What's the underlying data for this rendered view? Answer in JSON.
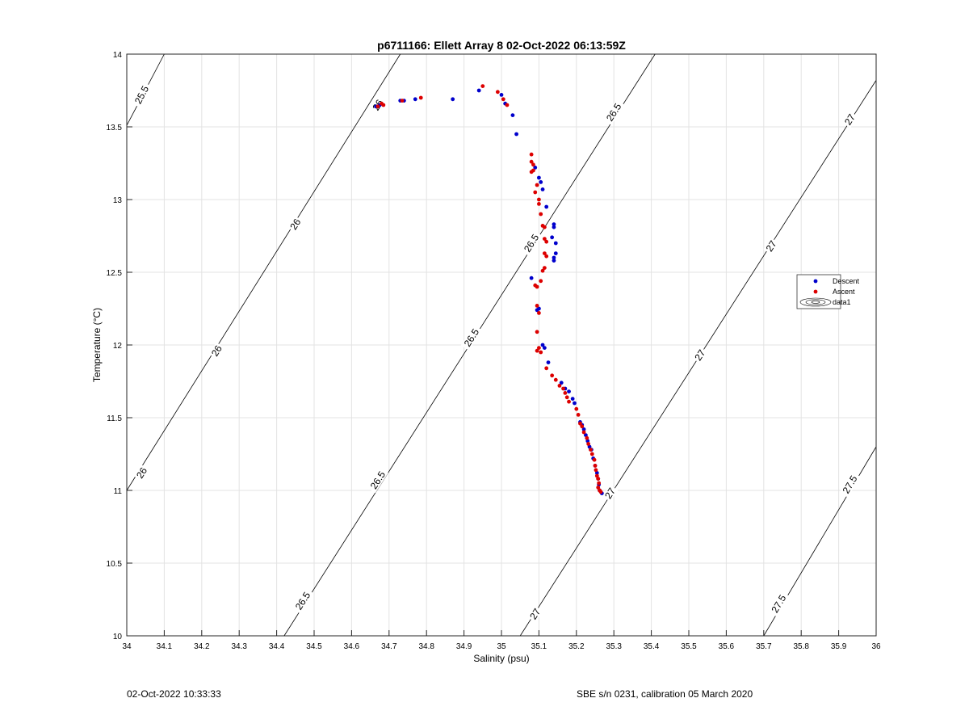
{
  "chart_data": {
    "type": "scatter",
    "title": "p6711166: Ellett Array 8 02-Oct-2022 06:13:59Z",
    "xlabel": "Salinity (psu)",
    "ylabel": "Temperature (°C)",
    "xlim": [
      34,
      36
    ],
    "ylim": [
      10,
      14
    ],
    "grid": true,
    "legend_placement": "right",
    "x_ticks": [
      "34",
      "34.1",
      "34.2",
      "34.3",
      "34.4",
      "34.5",
      "34.6",
      "34.7",
      "34.8",
      "34.9",
      "35",
      "35.1",
      "35.2",
      "35.3",
      "35.4",
      "35.5",
      "35.6",
      "35.7",
      "35.8",
      "35.9",
      "36"
    ],
    "y_ticks": [
      "10",
      "10.5",
      "11",
      "11.5",
      "12",
      "12.5",
      "13",
      "13.5",
      "14"
    ],
    "legend": [
      "Descent",
      "Ascent",
      "data1"
    ],
    "colors": {
      "descent": "#0000cc",
      "ascent": "#dd0000",
      "contour": "#000000",
      "grid": "#e3e3e3"
    },
    "series": [
      {
        "name": "Descent",
        "points": [
          [
            34.665,
            13.64
          ],
          [
            34.675,
            13.65
          ],
          [
            34.73,
            13.68
          ],
          [
            34.74,
            13.68
          ],
          [
            34.77,
            13.69
          ],
          [
            34.87,
            13.69
          ],
          [
            34.94,
            13.75
          ],
          [
            35.0,
            13.72
          ],
          [
            35.01,
            13.66
          ],
          [
            35.03,
            13.58
          ],
          [
            35.04,
            13.45
          ],
          [
            35.09,
            13.22
          ],
          [
            35.1,
            13.15
          ],
          [
            35.105,
            13.12
          ],
          [
            35.11,
            13.07
          ],
          [
            35.12,
            12.95
          ],
          [
            35.14,
            12.83
          ],
          [
            35.14,
            12.81
          ],
          [
            35.135,
            12.74
          ],
          [
            35.145,
            12.7
          ],
          [
            35.145,
            12.63
          ],
          [
            35.14,
            12.6
          ],
          [
            35.14,
            12.58
          ],
          [
            35.08,
            12.46
          ],
          [
            35.1,
            12.25
          ],
          [
            35.095,
            12.24
          ],
          [
            35.11,
            12.0
          ],
          [
            35.115,
            11.98
          ],
          [
            35.125,
            11.88
          ],
          [
            35.16,
            11.74
          ],
          [
            35.17,
            11.7
          ],
          [
            35.18,
            11.68
          ],
          [
            35.19,
            11.63
          ],
          [
            35.195,
            11.6
          ],
          [
            35.21,
            11.47
          ],
          [
            35.215,
            11.45
          ],
          [
            35.22,
            11.42
          ],
          [
            35.225,
            11.38
          ],
          [
            35.23,
            11.34
          ],
          [
            35.235,
            11.3
          ],
          [
            35.24,
            11.28
          ],
          [
            35.245,
            11.22
          ],
          [
            35.25,
            11.17
          ],
          [
            35.255,
            11.12
          ],
          [
            35.258,
            11.08
          ],
          [
            35.26,
            11.04
          ],
          [
            35.262,
            11.0
          ],
          [
            35.268,
            10.98
          ]
        ]
      },
      {
        "name": "Ascent",
        "points": [
          [
            34.67,
            13.64
          ],
          [
            34.685,
            13.65
          ],
          [
            34.68,
            13.66
          ],
          [
            34.735,
            13.68
          ],
          [
            34.785,
            13.7
          ],
          [
            34.95,
            13.78
          ],
          [
            34.99,
            13.74
          ],
          [
            35.005,
            13.69
          ],
          [
            35.015,
            13.65
          ],
          [
            35.08,
            13.31
          ],
          [
            35.08,
            13.26
          ],
          [
            35.085,
            13.24
          ],
          [
            35.085,
            13.2
          ],
          [
            35.08,
            13.19
          ],
          [
            35.095,
            13.1
          ],
          [
            35.09,
            13.05
          ],
          [
            35.1,
            13.0
          ],
          [
            35.1,
            12.97
          ],
          [
            35.105,
            12.9
          ],
          [
            35.11,
            12.82
          ],
          [
            35.115,
            12.81
          ],
          [
            35.115,
            12.73
          ],
          [
            35.12,
            12.71
          ],
          [
            35.115,
            12.63
          ],
          [
            35.12,
            12.61
          ],
          [
            35.115,
            12.53
          ],
          [
            35.11,
            12.51
          ],
          [
            35.105,
            12.44
          ],
          [
            35.09,
            12.41
          ],
          [
            35.095,
            12.4
          ],
          [
            35.095,
            12.27
          ],
          [
            35.1,
            12.22
          ],
          [
            35.095,
            12.09
          ],
          [
            35.1,
            11.98
          ],
          [
            35.095,
            11.96
          ],
          [
            35.105,
            11.95
          ],
          [
            35.12,
            11.84
          ],
          [
            35.135,
            11.79
          ],
          [
            35.145,
            11.76
          ],
          [
            35.155,
            11.72
          ],
          [
            35.165,
            11.7
          ],
          [
            35.17,
            11.67
          ],
          [
            35.175,
            11.64
          ],
          [
            35.18,
            11.61
          ],
          [
            35.2,
            11.56
          ],
          [
            35.205,
            11.52
          ],
          [
            35.21,
            11.46
          ],
          [
            35.215,
            11.44
          ],
          [
            35.22,
            11.4
          ],
          [
            35.228,
            11.36
          ],
          [
            35.232,
            11.32
          ],
          [
            35.238,
            11.28
          ],
          [
            35.242,
            11.25
          ],
          [
            35.248,
            11.21
          ],
          [
            35.25,
            11.17
          ],
          [
            35.252,
            11.14
          ],
          [
            35.255,
            11.1
          ],
          [
            35.258,
            11.08
          ],
          [
            35.26,
            11.05
          ],
          [
            35.258,
            11.02
          ],
          [
            35.262,
            11.0
          ],
          [
            35.265,
            10.99
          ]
        ]
      }
    ],
    "isopycnals": [
      {
        "label": "25.5",
        "line": [
          [
            34.0,
            13.51
          ],
          [
            34.1,
            14.0
          ]
        ],
        "labels_at": [
          [
            34.04,
            13.72
          ]
        ]
      },
      {
        "label": "26",
        "line": [
          [
            34.0,
            11.0
          ],
          [
            34.73,
            14.0
          ]
        ],
        "labels_at": [
          [
            34.67,
            13.65
          ],
          [
            34.45,
            12.83
          ],
          [
            34.24,
            11.96
          ],
          [
            34.04,
            11.12
          ]
        ]
      },
      {
        "label": "26.5",
        "line": [
          [
            34.42,
            10.0
          ],
          [
            35.41,
            14.0
          ]
        ],
        "labels_at": [
          [
            35.3,
            13.6
          ],
          [
            35.08,
            12.7
          ],
          [
            34.92,
            12.05
          ],
          [
            34.67,
            11.07
          ],
          [
            34.47,
            10.24
          ]
        ]
      },
      {
        "label": "27",
        "line": [
          [
            35.05,
            10.0
          ],
          [
            36.0,
            13.82
          ]
        ],
        "labels_at": [
          [
            35.93,
            13.55
          ],
          [
            35.72,
            12.68
          ],
          [
            35.53,
            11.93
          ],
          [
            35.29,
            10.98
          ],
          [
            35.09,
            10.15
          ]
        ]
      },
      {
        "label": "27.5",
        "line": [
          [
            35.7,
            10.0
          ],
          [
            36.0,
            11.3
          ]
        ],
        "labels_at": [
          [
            35.93,
            11.04
          ],
          [
            35.74,
            10.22
          ]
        ]
      }
    ]
  },
  "footer": {
    "timestamp": "02-Oct-2022 10:33:33",
    "instrument": "SBE s/n 0231, calibration 05 March 2020"
  }
}
